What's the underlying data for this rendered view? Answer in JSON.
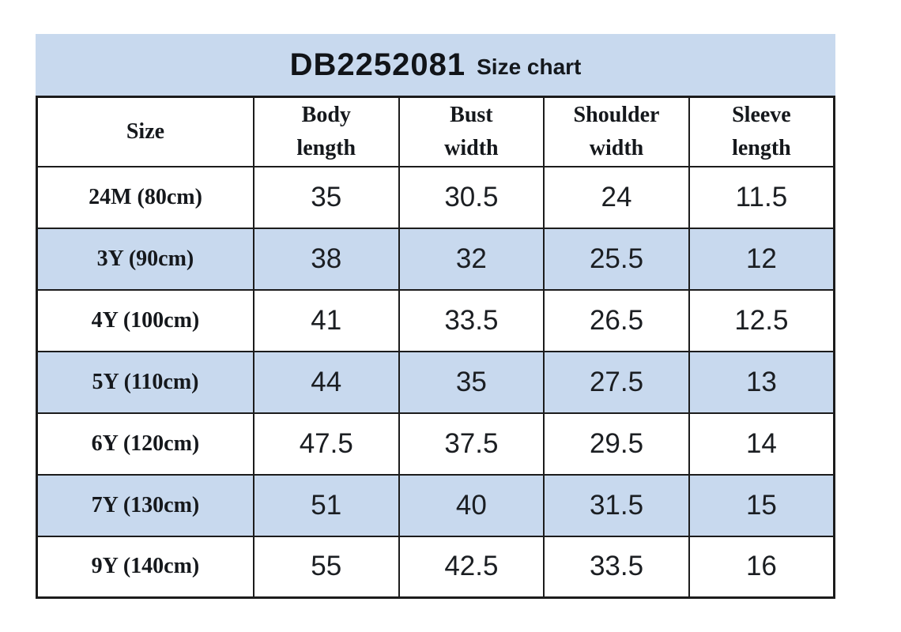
{
  "page": {
    "background_color": "#ffffff",
    "accent_color": "#c8d9ee",
    "border_color": "#1c1c1c"
  },
  "table": {
    "title": "DB2252081",
    "subtitle": "Size chart",
    "columns": [
      "Size",
      "Body\nlength",
      "Bust\nwidth",
      "Shoulder\nwidth",
      "Sleeve\nlength"
    ],
    "rows": [
      {
        "size": "24M (80cm)",
        "values": [
          "35",
          "30.5",
          "24",
          "11.5"
        ],
        "highlighted": false
      },
      {
        "size": "3Y (90cm)",
        "values": [
          "38",
          "32",
          "25.5",
          "12"
        ],
        "highlighted": true
      },
      {
        "size": "4Y (100cm)",
        "values": [
          "41",
          "33.5",
          "26.5",
          "12.5"
        ],
        "highlighted": false
      },
      {
        "size": "5Y (110cm)",
        "values": [
          "44",
          "35",
          "27.5",
          "13"
        ],
        "highlighted": true
      },
      {
        "size": "6Y (120cm)",
        "values": [
          "47.5",
          "37.5",
          "29.5",
          "14"
        ],
        "highlighted": false
      },
      {
        "size": "7Y (130cm)",
        "values": [
          "51",
          "40",
          "31.5",
          "15"
        ],
        "highlighted": true
      },
      {
        "size": "9Y (140cm)",
        "values": [
          "55",
          "42.5",
          "33.5",
          "16"
        ],
        "highlighted": false
      }
    ]
  },
  "chart_data": {
    "type": "table",
    "title": "DB2252081 Size chart",
    "columns": [
      "Size",
      "Body length",
      "Bust width",
      "Shoulder width",
      "Sleeve length"
    ],
    "rows": [
      [
        "24M (80cm)",
        35,
        30.5,
        24,
        11.5
      ],
      [
        "3Y (90cm)",
        38,
        32,
        25.5,
        12
      ],
      [
        "4Y (100cm)",
        41,
        33.5,
        26.5,
        12.5
      ],
      [
        "5Y (110cm)",
        44,
        35,
        27.5,
        13
      ],
      [
        "6Y (120cm)",
        47.5,
        37.5,
        29.5,
        14
      ],
      [
        "7Y (130cm)",
        51,
        40,
        31.5,
        15
      ],
      [
        "9Y (140cm)",
        55,
        42.5,
        33.5,
        16
      ]
    ],
    "layout": {
      "highlighted_row_indexes": [
        1,
        3,
        5
      ],
      "highlight_color": "#c8d9ee",
      "header_fill": "#c8d9ee",
      "grid": true
    }
  }
}
